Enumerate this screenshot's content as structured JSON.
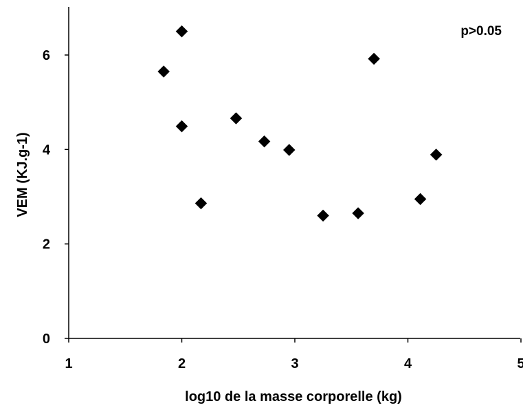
{
  "chart_data": {
    "type": "scatter",
    "title": "",
    "xlabel": "log10 de la masse corporelle (kg)",
    "ylabel": "VEM (KJ.g-1)",
    "xlim": [
      1,
      5
    ],
    "ylim": [
      0,
      7
    ],
    "xticks": [
      1,
      2,
      3,
      4,
      5
    ],
    "yticks": [
      0,
      2,
      4,
      6
    ],
    "grid": false,
    "annotation": "p>0.05",
    "marker": "diamond",
    "marker_color": "#000000",
    "series": [
      {
        "points": [
          {
            "x": 1.84,
            "y": 5.65
          },
          {
            "x": 2.0,
            "y": 6.5
          },
          {
            "x": 2.0,
            "y": 4.49
          },
          {
            "x": 2.17,
            "y": 2.86
          },
          {
            "x": 2.48,
            "y": 4.66
          },
          {
            "x": 2.73,
            "y": 4.17
          },
          {
            "x": 2.95,
            "y": 3.99
          },
          {
            "x": 3.25,
            "y": 2.6
          },
          {
            "x": 3.56,
            "y": 2.65
          },
          {
            "x": 3.7,
            "y": 5.92
          },
          {
            "x": 4.11,
            "y": 2.95
          },
          {
            "x": 4.25,
            "y": 3.89
          }
        ]
      }
    ]
  }
}
